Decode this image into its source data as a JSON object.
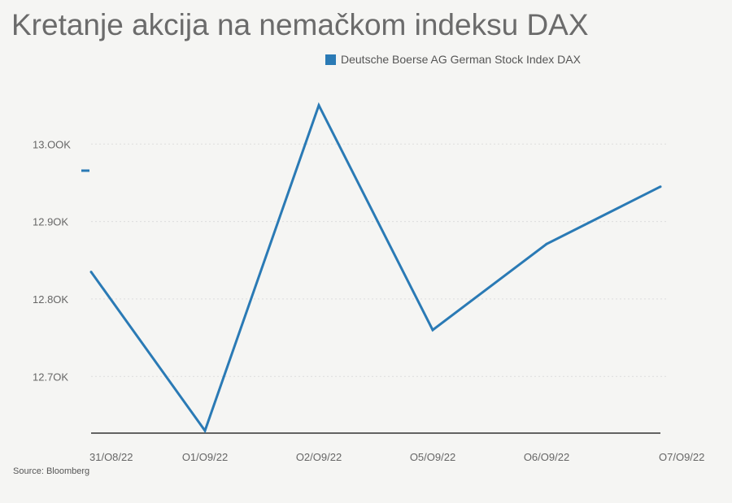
{
  "title": "Kretanje akcija na nemačkom indeksu DAX",
  "source": "Source: Bloomberg",
  "colors": {
    "line": "#2a7ab5",
    "background": "#f5f5f3",
    "grid": "#dddddd"
  },
  "chart_data": {
    "type": "line",
    "categories": [
      "31/O8/22",
      "O1/O9/22",
      "O2/O9/22",
      "O5/O9/22",
      "O6/O9/22",
      "O7/O9/22"
    ],
    "series": [
      {
        "name": "Deutsche Boerse AG German Stock Index DAX",
        "values": [
          12835,
          12630,
          13050,
          12760,
          12871,
          12945
        ]
      }
    ],
    "yticks": [
      12700,
      12800,
      12900,
      13000
    ],
    "ytick_labels": [
      "12.7OK",
      "12.8OK",
      "12.9OK",
      "13.OOK"
    ],
    "ylim": [
      12630,
      13080
    ],
    "grid": "horizontal dotted",
    "legend": "top-right"
  }
}
